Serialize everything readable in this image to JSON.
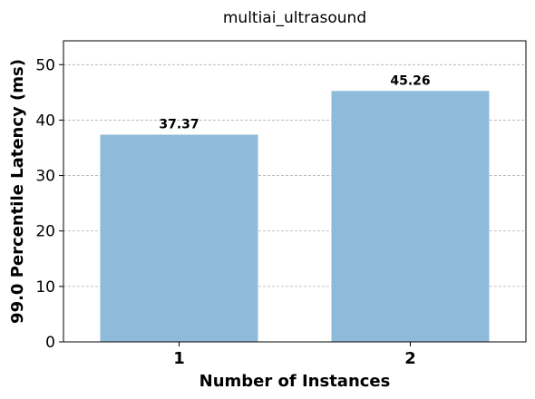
{
  "chart_data": {
    "type": "bar",
    "title": "multiai_ultrasound",
    "xlabel": "Number of Instances",
    "ylabel": "99.0 Percentile Latency (ms)",
    "categories": [
      "1",
      "2"
    ],
    "values": [
      37.37,
      45.26
    ],
    "value_labels": [
      "37.37",
      "45.26"
    ],
    "ylim": [
      0,
      54.3
    ],
    "yticks": [
      0,
      10,
      20,
      30,
      40,
      50
    ],
    "grid": true,
    "bar_color": "#8fbbda"
  }
}
